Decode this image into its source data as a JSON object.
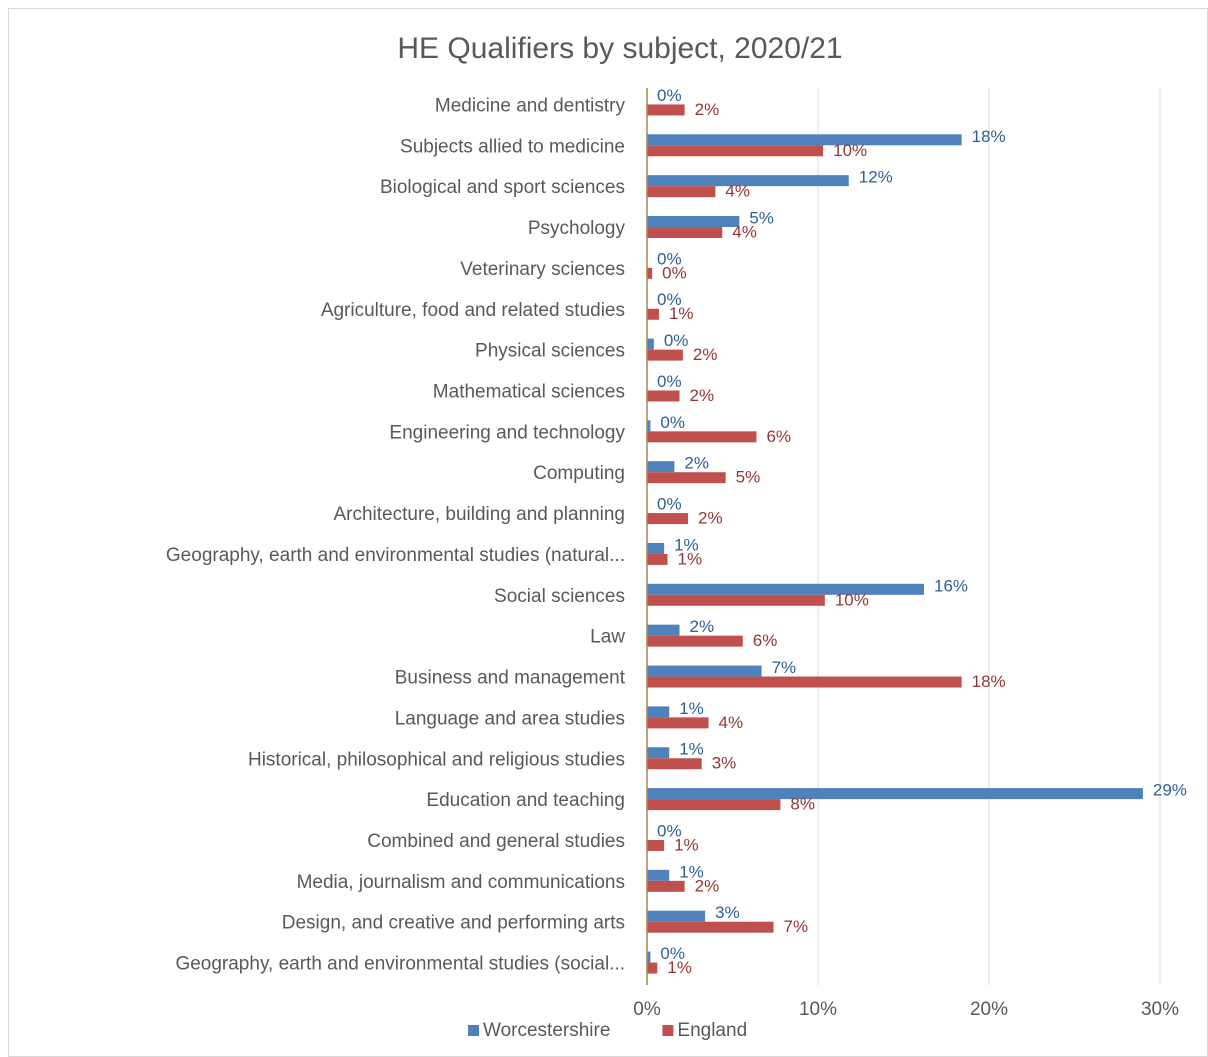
{
  "chart_data": {
    "type": "hbar",
    "title": "HE Qualifiers by subject, 2020/21",
    "categories": [
      "Medicine and dentistry",
      "Subjects allied to medicine",
      "Biological and sport sciences",
      "Psychology",
      "Veterinary sciences",
      "Agriculture, food and related studies",
      "Physical sciences",
      "Mathematical sciences",
      "Engineering and technology",
      "Computing",
      "Architecture, building and planning",
      "Geography, earth and environmental studies (natural...",
      "Social sciences",
      "Law",
      "Business and management",
      "Language and area studies",
      "Historical, philosophical and religious studies",
      "Education and teaching",
      "Combined and general studies",
      "Media, journalism and communications",
      "Design, and creative and performing arts",
      "Geography, earth and environmental studies (social..."
    ],
    "series": [
      {
        "name": "Worcestershire",
        "color": "#4f81bd",
        "label_color": "#2f5f96",
        "values": [
          0,
          18.4,
          11.8,
          5.4,
          0,
          0,
          0.4,
          0,
          0.2,
          1.6,
          0,
          1.0,
          16.2,
          1.9,
          6.7,
          1.3,
          1.3,
          29.0,
          0,
          1.3,
          3.4,
          0.2
        ],
        "value_labels": [
          "0%",
          "18%",
          "12%",
          "5%",
          "0%",
          "0%",
          "0%",
          "0%",
          "0%",
          "2%",
          "0%",
          "1%",
          "16%",
          "2%",
          "7%",
          "1%",
          "1%",
          "29%",
          "0%",
          "1%",
          "3%",
          "0%"
        ]
      },
      {
        "name": "England",
        "color": "#c0504d",
        "label_color": "#943634",
        "values": [
          2.2,
          10.3,
          4.0,
          4.4,
          0.3,
          0.7,
          2.1,
          1.9,
          6.4,
          4.6,
          2.4,
          1.2,
          10.4,
          5.6,
          18.4,
          3.6,
          3.2,
          7.8,
          1.0,
          2.2,
          7.4,
          0.6
        ],
        "value_labels": [
          "2%",
          "10%",
          "4%",
          "4%",
          "0%",
          "1%",
          "2%",
          "2%",
          "6%",
          "5%",
          "2%",
          "1%",
          "10%",
          "6%",
          "18%",
          "4%",
          "3%",
          "8%",
          "1%",
          "2%",
          "7%",
          "1%"
        ]
      }
    ],
    "xlim": [
      0,
      30
    ],
    "xticks": [
      {
        "value": 0,
        "label": "0%"
      },
      {
        "value": 10,
        "label": "10%"
      },
      {
        "value": 20,
        "label": "20%"
      },
      {
        "value": 30,
        "label": "30%"
      }
    ],
    "grid": true,
    "legend": "bottom"
  }
}
